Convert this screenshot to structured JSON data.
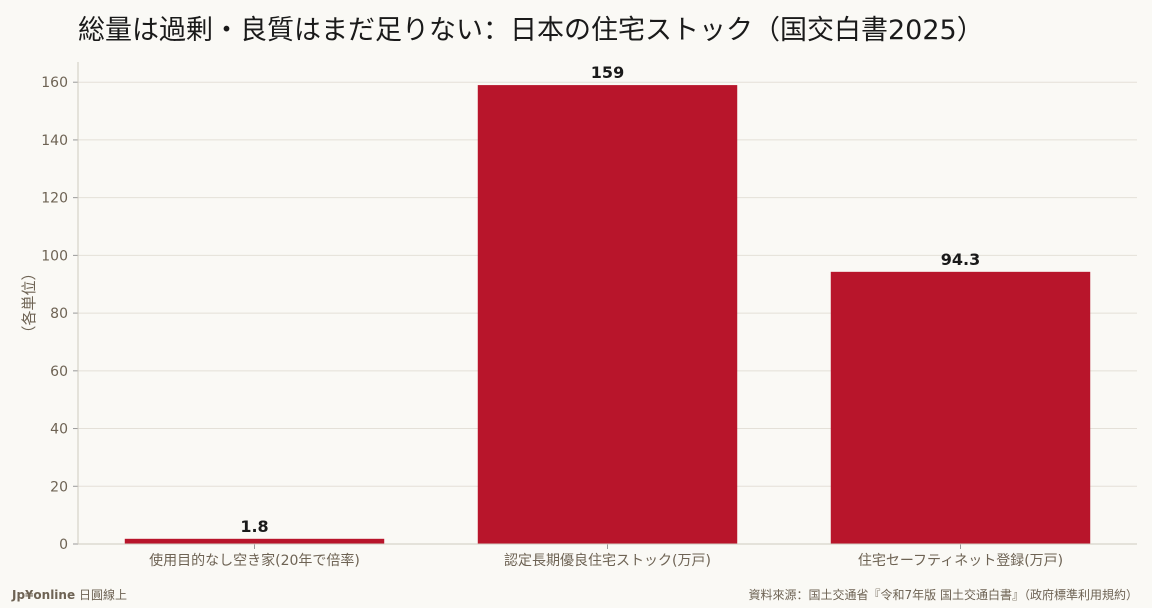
{
  "title": "総量は過剰・良質はまだ足りない：日本の住宅ストック（国交白書2025）",
  "chart_data": {
    "type": "bar",
    "title": "総量は過剰・良質はまだ足りない：日本の住宅ストック（国交白書2025）",
    "ylabel": "（各単位）",
    "xlabel": "",
    "categories": [
      "使用目的なし空き家(20年で倍率)",
      "認定長期優良住宅ストック(万戸)",
      "住宅セーフティネット登録(万戸)"
    ],
    "values": [
      1.8,
      159,
      94.3
    ],
    "value_labels": [
      "1.8",
      "159",
      "94.3"
    ],
    "ylim": [
      0,
      167
    ],
    "yticks": [
      0,
      20,
      40,
      60,
      80,
      100,
      120,
      140,
      160
    ],
    "grid": true,
    "bar_color": "#b8152b"
  },
  "footer": {
    "brand": "Jp¥online",
    "brand_sub": "日圓線上",
    "source": "資料來源：国土交通省『令和7年版 国土交通白書』（政府標準利用規約）"
  }
}
